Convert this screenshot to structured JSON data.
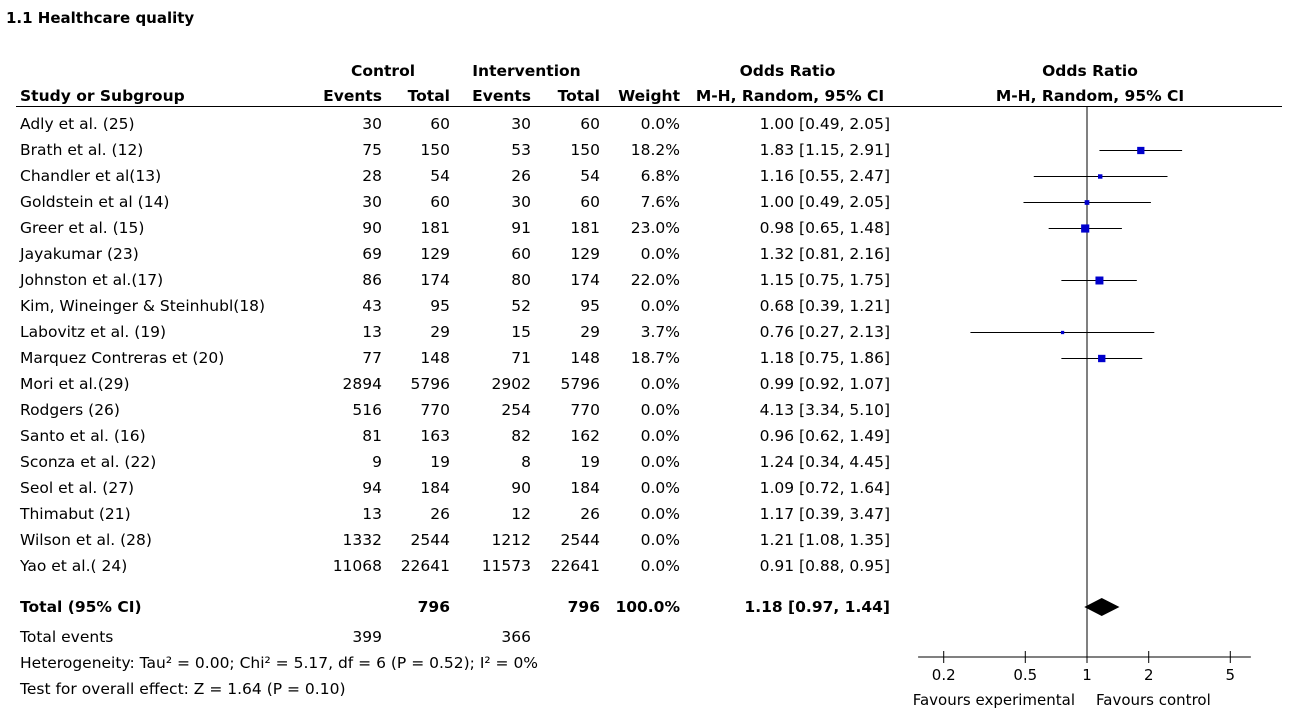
{
  "title": "1.1 Healthcare quality",
  "headers": {
    "control": "Control",
    "intervention": "Intervention",
    "odds_ratio": "Odds Ratio",
    "odds_ratio_plot": "Odds Ratio",
    "study": "Study or Subgroup",
    "events_c": "Events",
    "total_c": "Total",
    "events_i": "Events",
    "total_i": "Total",
    "weight": "Weight",
    "method": "M-H, Random, 95% CI",
    "method_plot": "M-H, Random, 95% CI"
  },
  "studies": [
    {
      "name": "Adly et al. (25)",
      "ce": "30",
      "ct": "60",
      "ie": "30",
      "it": "60",
      "weight": "0.0%",
      "ci": "1.00 [0.49, 2.05]"
    },
    {
      "name": "Brath et al. (12)",
      "ce": "75",
      "ct": "150",
      "ie": "53",
      "it": "150",
      "weight": "18.2%",
      "ci": "1.83 [1.15, 2.91]"
    },
    {
      "name": "Chandler et al(13)",
      "ce": "28",
      "ct": "54",
      "ie": "26",
      "it": "54",
      "weight": "6.8%",
      "ci": "1.16 [0.55, 2.47]"
    },
    {
      "name": "Goldstein et al (14)",
      "ce": "30",
      "ct": "60",
      "ie": "30",
      "it": "60",
      "weight": "7.6%",
      "ci": "1.00 [0.49, 2.05]"
    },
    {
      "name": "Greer et al. (15)",
      "ce": "90",
      "ct": "181",
      "ie": "91",
      "it": "181",
      "weight": "23.0%",
      "ci": "0.98 [0.65, 1.48]"
    },
    {
      "name": "Jayakumar (23)",
      "ce": "69",
      "ct": "129",
      "ie": "60",
      "it": "129",
      "weight": "0.0%",
      "ci": "1.32 [0.81, 2.16]"
    },
    {
      "name": "Johnston et al.(17)",
      "ce": "86",
      "ct": "174",
      "ie": "80",
      "it": "174",
      "weight": "22.0%",
      "ci": "1.15 [0.75, 1.75]"
    },
    {
      "name": "Kim, Wineinger & Steinhubl(18)",
      "ce": "43",
      "ct": "95",
      "ie": "52",
      "it": "95",
      "weight": "0.0%",
      "ci": "0.68 [0.39, 1.21]"
    },
    {
      "name": "Labovitz et al. (19)",
      "ce": "13",
      "ct": "29",
      "ie": "15",
      "it": "29",
      "weight": "3.7%",
      "ci": "0.76 [0.27, 2.13]"
    },
    {
      "name": "Marquez Contreras et (20)",
      "ce": "77",
      "ct": "148",
      "ie": "71",
      "it": "148",
      "weight": "18.7%",
      "ci": "1.18 [0.75, 1.86]"
    },
    {
      "name": "Mori et al.(29)",
      "ce": "2894",
      "ct": "5796",
      "ie": "2902",
      "it": "5796",
      "weight": "0.0%",
      "ci": "0.99 [0.92, 1.07]"
    },
    {
      "name": "Rodgers (26)",
      "ce": "516",
      "ct": "770",
      "ie": "254",
      "it": "770",
      "weight": "0.0%",
      "ci": "4.13 [3.34, 5.10]"
    },
    {
      "name": "Santo et al. (16)",
      "ce": "81",
      "ct": "163",
      "ie": "82",
      "it": "162",
      "weight": "0.0%",
      "ci": "0.96 [0.62, 1.49]"
    },
    {
      "name": "Sconza et al. (22)",
      "ce": "9",
      "ct": "19",
      "ie": "8",
      "it": "19",
      "weight": "0.0%",
      "ci": "1.24 [0.34, 4.45]"
    },
    {
      "name": "Seol et al. (27)",
      "ce": "94",
      "ct": "184",
      "ie": "90",
      "it": "184",
      "weight": "0.0%",
      "ci": "1.09 [0.72, 1.64]"
    },
    {
      "name": "Thimabut (21)",
      "ce": "13",
      "ct": "26",
      "ie": "12",
      "it": "26",
      "weight": "0.0%",
      "ci": "1.17 [0.39, 3.47]"
    },
    {
      "name": "Wilson et al. (28)",
      "ce": "1332",
      "ct": "2544",
      "ie": "1212",
      "it": "2544",
      "weight": "0.0%",
      "ci": "1.21 [1.08, 1.35]"
    },
    {
      "name": "Yao et al.( 24)",
      "ce": "11068",
      "ct": "22641",
      "ie": "11573",
      "it": "22641",
      "weight": "0.0%",
      "ci": "0.91 [0.88, 0.95]"
    }
  ],
  "total": {
    "label": "Total (95% CI)",
    "ct": "796",
    "it": "796",
    "weight": "100.0%",
    "ci": "1.18 [0.97, 1.44]"
  },
  "total_events": {
    "label": "Total events",
    "c": "399",
    "i": "366"
  },
  "heterogeneity": "Heterogeneity: Tau² = 0.00; Chi² = 5.17, df = 6 (P = 0.52); I² = 0%",
  "overall_effect": "Test for overall effect: Z = 1.64 (P = 0.10)",
  "colors": {
    "marker": "#0000cc",
    "diamond": "#000000",
    "line": "#000000"
  },
  "chart_data": {
    "type": "forest",
    "scale": "log",
    "xlim": [
      0.15,
      6.3
    ],
    "ticks": [
      0.2,
      0.5,
      1,
      2,
      5
    ],
    "tick_labels": [
      "0.2",
      "0.5",
      "1",
      "2",
      "5"
    ],
    "xlabel_left": "Favours experimental",
    "xlabel_right": "Favours control",
    "reference_line": 1,
    "points": [
      {
        "study": "Brath et al. (12)",
        "or": 1.83,
        "lo": 1.15,
        "hi": 2.91,
        "weight": 18.2
      },
      {
        "study": "Chandler et al(13)",
        "or": 1.16,
        "lo": 0.55,
        "hi": 2.47,
        "weight": 6.8
      },
      {
        "study": "Goldstein et al (14)",
        "or": 1.0,
        "lo": 0.49,
        "hi": 2.05,
        "weight": 7.6
      },
      {
        "study": "Greer et al. (15)",
        "or": 0.98,
        "lo": 0.65,
        "hi": 1.48,
        "weight": 23.0
      },
      {
        "study": "Johnston et al.(17)",
        "or": 1.15,
        "lo": 0.75,
        "hi": 1.75,
        "weight": 22.0
      },
      {
        "study": "Labovitz et al. (19)",
        "or": 0.76,
        "lo": 0.27,
        "hi": 2.13,
        "weight": 3.7
      },
      {
        "study": "Marquez Contreras et (20)",
        "or": 1.18,
        "lo": 0.75,
        "hi": 1.86,
        "weight": 18.7
      }
    ],
    "pooled": {
      "or": 1.18,
      "lo": 0.97,
      "hi": 1.44
    }
  }
}
